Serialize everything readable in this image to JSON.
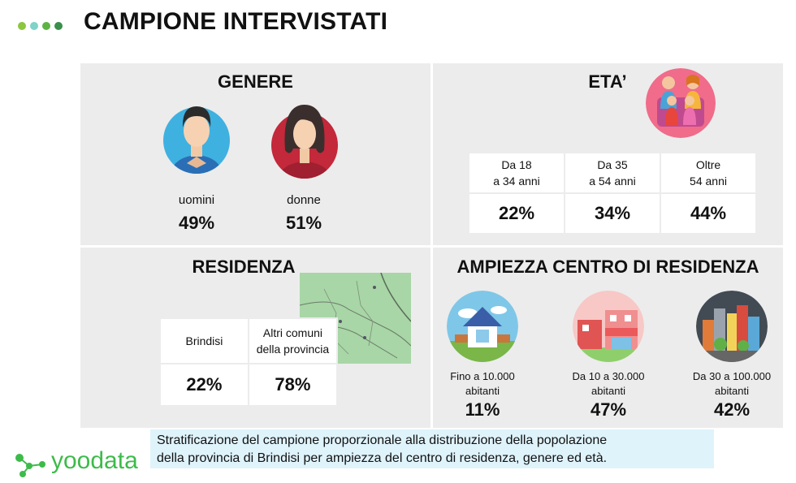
{
  "header": {
    "title": "CAMPIONE INTERVISTATI",
    "dot_colors": [
      "#8dc63f",
      "#7fd3c8",
      "#5fb346",
      "#3a8f4b"
    ]
  },
  "genere": {
    "title": "GENERE",
    "men": {
      "label": "uomini",
      "value": "49%",
      "icon": "man-avatar-icon"
    },
    "women": {
      "label": "donne",
      "value": "51%",
      "icon": "woman-avatar-icon"
    }
  },
  "eta": {
    "title": "ETA’",
    "icon": "family-icon",
    "groups": [
      {
        "line1": "Da 18",
        "line2": "a 34 anni",
        "value": "22%"
      },
      {
        "line1": "Da 35",
        "line2": "a 54 anni",
        "value": "34%"
      },
      {
        "line1": "Oltre",
        "line2": "54 anni",
        "value": "44%"
      }
    ]
  },
  "residenza": {
    "title": "RESIDENZA",
    "map_icon": "province-map-icon",
    "groups": [
      {
        "line1": "Brindisi",
        "line2": "",
        "value": "22%"
      },
      {
        "line1": "Altri comuni",
        "line2": "della provincia",
        "value": "78%"
      }
    ]
  },
  "ampiezza": {
    "title": "AMPIEZZA CENTRO DI RESIDENZA",
    "items": [
      {
        "line1": "Fino a 10.000",
        "line2": "abitanti",
        "value": "11%",
        "icon": "house-icon"
      },
      {
        "line1": "Da 10 a 30.000",
        "line2": "abitanti",
        "value": "47%",
        "icon": "town-icon"
      },
      {
        "line1": "Da 30 a 100.000",
        "line2": "abitanti",
        "value": "42%",
        "icon": "city-icon"
      }
    ]
  },
  "caption": {
    "line1": "Stratificazione del campione proporzionale alla distribuzione della popolazione",
    "line2": "della provincia di Brindisi per ampiezza del centro di residenza, genere ed età."
  },
  "logo": {
    "text": "yoodata",
    "icon": "molecule-logo-icon",
    "color": "#3dbb4a"
  }
}
